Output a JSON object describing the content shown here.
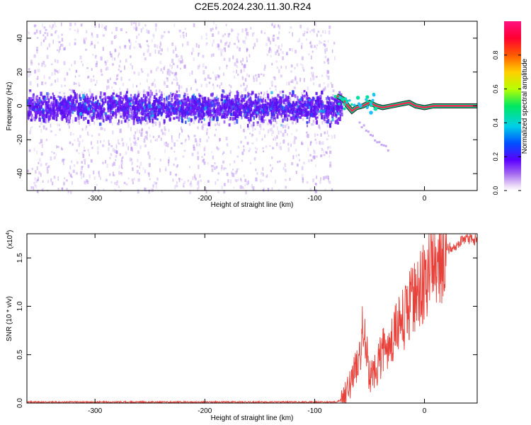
{
  "title": "C2E5.2024.230.11.30.R24",
  "chart_data": [
    {
      "type": "heatmap",
      "ylabel": "Frequency (Hz)",
      "xlabel": "Height of straight line (km)",
      "xlim": [
        -362,
        48
      ],
      "ylim": [
        -50,
        50
      ],
      "x_ticks": [
        -300,
        -200,
        -100,
        0
      ],
      "y_ticks": [
        -40,
        -20,
        0,
        20,
        40
      ],
      "noise_cutoff_x": -82,
      "signal_track": [
        {
          "x": -80,
          "y": 6
        },
        {
          "x": -74,
          "y": 4
        },
        {
          "x": -70,
          "y": 0
        },
        {
          "x": -66,
          "y": -3
        },
        {
          "x": -62,
          "y": -1
        },
        {
          "x": -56,
          "y": 0
        },
        {
          "x": -50,
          "y": 2
        },
        {
          "x": -44,
          "y": 0
        },
        {
          "x": -38,
          "y": -1
        },
        {
          "x": -30,
          "y": 0
        },
        {
          "x": -22,
          "y": 1
        },
        {
          "x": -14,
          "y": 2
        },
        {
          "x": -8,
          "y": 0
        },
        {
          "x": 0,
          "y": -1
        },
        {
          "x": 8,
          "y": 0
        },
        {
          "x": 20,
          "y": 0
        },
        {
          "x": 48,
          "y": 0
        }
      ],
      "colorbar": {
        "label": "Normalized spectral amplitude",
        "range": [
          0,
          1
        ],
        "ticks": [
          "0.0",
          "0.2",
          "0.4",
          "0.6",
          "0.8"
        ],
        "tick_values": [
          0,
          0.2,
          0.4,
          0.6,
          0.8
        ]
      }
    },
    {
      "type": "line",
      "ylabel": "SNR (10 * v/v)",
      "multiplier": "(x10",
      "multiplier_exp": "4",
      "multiplier_close": ")",
      "xlabel": "Height of straight line (km)",
      "xlim": [
        -362,
        48
      ],
      "ylim": [
        0,
        1.75
      ],
      "x_ticks": [
        -300,
        -200,
        -100,
        0
      ],
      "y_ticks": [
        "0.0",
        "0.5",
        "1.0",
        "1.5"
      ],
      "y_tick_values": [
        0,
        0.5,
        1.0,
        1.5
      ],
      "series": [
        {
          "name": "SNR",
          "color": "#e8413a",
          "x": [
            -362,
            -300,
            -200,
            -100,
            -80,
            -74,
            -70,
            -66,
            -62,
            -58,
            -55,
            -52,
            -50,
            -46,
            -42,
            -38,
            -34,
            -30,
            -26,
            -22,
            -18,
            -14,
            -10,
            -6,
            -2,
            2,
            6,
            10,
            14,
            18,
            22,
            26,
            30,
            34,
            38,
            42,
            48
          ],
          "y": [
            0.01,
            0.01,
            0.01,
            0.01,
            0.01,
            0.05,
            0.15,
            0.25,
            0.4,
            0.55,
            0.9,
            0.45,
            0.3,
            0.35,
            0.4,
            0.55,
            0.6,
            0.65,
            0.75,
            0.8,
            0.9,
            1.0,
            1.1,
            1.15,
            1.25,
            1.3,
            1.4,
            1.45,
            1.5,
            1.55,
            1.6,
            1.62,
            1.65,
            1.68,
            1.7,
            1.7,
            1.68
          ]
        }
      ]
    }
  ]
}
